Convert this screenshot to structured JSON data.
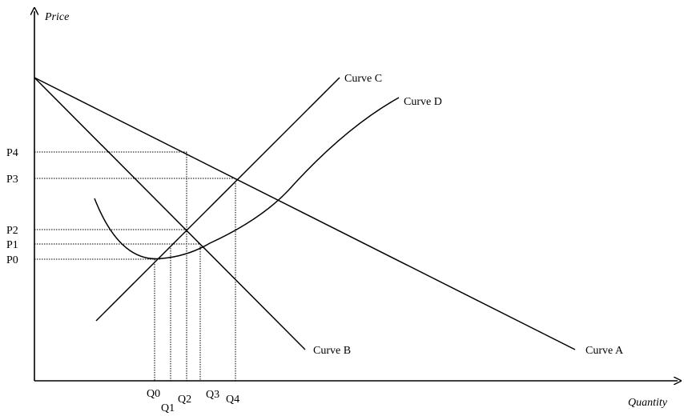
{
  "axes": {
    "y_title": "Price",
    "x_title": "Quantity"
  },
  "curves": {
    "a": "Curve A",
    "b": "Curve B",
    "c": "Curve C",
    "d": "Curve D"
  },
  "price_levels": [
    "P4",
    "P3",
    "P2",
    "P1",
    "P0"
  ],
  "quantity_levels": [
    "Q0",
    "Q1",
    "Q2",
    "Q3",
    "Q4"
  ]
}
